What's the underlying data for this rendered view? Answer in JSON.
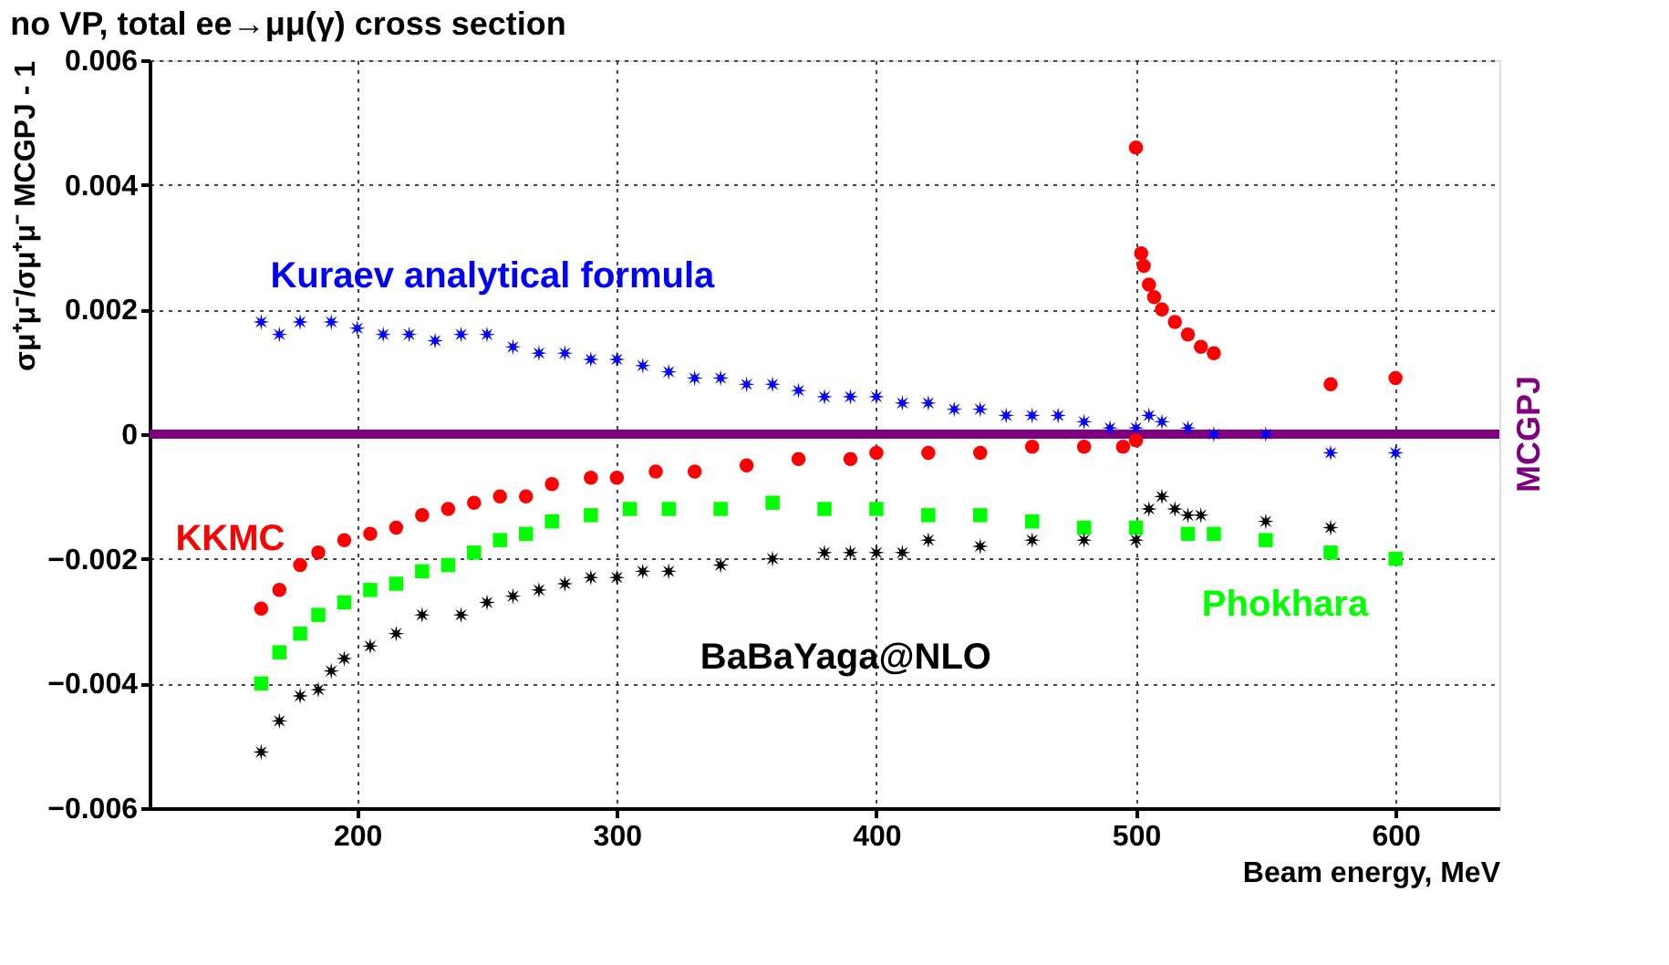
{
  "chart_data": {
    "type": "scatter",
    "title": "no VP, total ee→μμ(γ) cross section",
    "xlabel": "Beam energy, MeV",
    "ylabel": "σμ⁺μ⁻/σμ⁺μ⁻ MCGPJ - 1",
    "xlim": [
      120,
      640
    ],
    "xticks": [
      200,
      300,
      400,
      500,
      600
    ],
    "ylim": [
      -0.006,
      0.006
    ],
    "yticks": [
      -0.006,
      -0.004,
      -0.002,
      0,
      0.002,
      0.004,
      0.006
    ],
    "grid": true,
    "legend": false,
    "ref_lines": [
      {
        "axis": "y",
        "value": 0,
        "label": "MCGPJ",
        "color": "#800080",
        "line_style": "solid"
      }
    ],
    "series": [
      {
        "name": "Kuraev analytical formula",
        "color": "#0000ff",
        "marker": "star",
        "x": [
          163,
          170,
          178,
          190,
          200,
          210,
          220,
          230,
          240,
          250,
          260,
          270,
          280,
          290,
          300,
          310,
          320,
          330,
          340,
          350,
          360,
          370,
          380,
          390,
          400,
          410,
          420,
          430,
          440,
          450,
          460,
          470,
          480,
          490,
          500,
          505,
          510,
          520,
          530,
          550,
          575,
          600
        ],
        "values": [
          0.0018,
          0.0016,
          0.0018,
          0.0018,
          0.0017,
          0.0016,
          0.0016,
          0.0015,
          0.0016,
          0.0016,
          0.0014,
          0.0013,
          0.0013,
          0.0012,
          0.0012,
          0.0011,
          0.001,
          0.0009,
          0.0009,
          0.0008,
          0.0008,
          0.0007,
          0.0006,
          0.0006,
          0.0006,
          0.0005,
          0.0005,
          0.0004,
          0.0004,
          0.0003,
          0.0003,
          0.0003,
          0.0002,
          0.0001,
          0.0001,
          0.0003,
          0.0002,
          0.0001,
          0.0,
          0.0,
          -0.0003,
          -0.0003
        ]
      },
      {
        "name": "KKMC",
        "color": "#ff0000",
        "marker": "circle",
        "x": [
          163,
          170,
          178,
          185,
          195,
          205,
          215,
          225,
          235,
          245,
          255,
          265,
          275,
          290,
          300,
          315,
          330,
          350,
          370,
          390,
          400,
          420,
          440,
          460,
          480,
          495,
          500,
          500,
          502,
          503,
          505,
          507,
          510,
          515,
          520,
          525,
          530,
          575,
          600
        ],
        "values": [
          -0.0028,
          -0.0025,
          -0.0021,
          -0.0019,
          -0.0017,
          -0.0016,
          -0.0015,
          -0.0013,
          -0.0012,
          -0.0011,
          -0.001,
          -0.001,
          -0.0008,
          -0.0007,
          -0.0007,
          -0.0006,
          -0.0006,
          -0.0005,
          -0.0004,
          -0.0004,
          -0.0003,
          -0.0003,
          -0.0003,
          -0.0002,
          -0.0002,
          -0.0002,
          -0.0001,
          0.0046,
          0.0029,
          0.0027,
          0.0024,
          0.0022,
          0.002,
          0.0018,
          0.0016,
          0.0014,
          0.0013,
          0.0008,
          0.0009
        ]
      },
      {
        "name": "Phokhara",
        "color": "#00ff00",
        "marker": "square",
        "x": [
          163,
          170,
          178,
          185,
          195,
          205,
          215,
          225,
          235,
          245,
          255,
          265,
          275,
          290,
          305,
          320,
          340,
          360,
          380,
          400,
          420,
          440,
          460,
          480,
          500,
          520,
          530,
          550,
          575,
          600
        ],
        "values": [
          -0.004,
          -0.0035,
          -0.0032,
          -0.0029,
          -0.0027,
          -0.0025,
          -0.0024,
          -0.0022,
          -0.0021,
          -0.0019,
          -0.0017,
          -0.0016,
          -0.0014,
          -0.0013,
          -0.0012,
          -0.0012,
          -0.0012,
          -0.0011,
          -0.0012,
          -0.0012,
          -0.0013,
          -0.0013,
          -0.0014,
          -0.0015,
          -0.0015,
          -0.0016,
          -0.0016,
          -0.0017,
          -0.0019,
          -0.002
        ]
      },
      {
        "name": "BaBaYaga@NLO",
        "color": "#000000",
        "marker": "star",
        "x": [
          163,
          170,
          178,
          185,
          190,
          195,
          205,
          215,
          225,
          240,
          250,
          260,
          270,
          280,
          290,
          300,
          310,
          320,
          340,
          360,
          380,
          390,
          400,
          410,
          420,
          440,
          460,
          480,
          500,
          505,
          510,
          515,
          520,
          525,
          550,
          575
        ],
        "values": [
          -0.0051,
          -0.0046,
          -0.0042,
          -0.0041,
          -0.0038,
          -0.0036,
          -0.0034,
          -0.0032,
          -0.0029,
          -0.0029,
          -0.0027,
          -0.0026,
          -0.0025,
          -0.0024,
          -0.0023,
          -0.0023,
          -0.0022,
          -0.0022,
          -0.0021,
          -0.002,
          -0.0019,
          -0.0019,
          -0.0019,
          -0.0019,
          -0.0017,
          -0.0018,
          -0.0017,
          -0.0017,
          -0.0017,
          -0.0012,
          -0.001,
          -0.0012,
          -0.0013,
          -0.0013,
          -0.0014,
          -0.0015
        ]
      }
    ]
  }
}
